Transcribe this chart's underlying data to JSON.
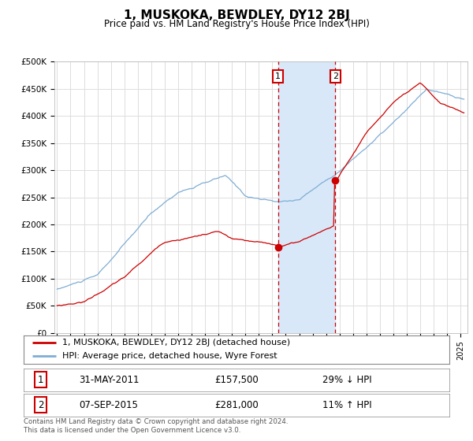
{
  "title": "1, MUSKOKA, BEWDLEY, DY12 2BJ",
  "subtitle": "Price paid vs. HM Land Registry's House Price Index (HPI)",
  "ylim": [
    0,
    500000
  ],
  "yticks": [
    0,
    50000,
    100000,
    150000,
    200000,
    250000,
    300000,
    350000,
    400000,
    450000,
    500000
  ],
  "ytick_labels": [
    "£0",
    "£50K",
    "£100K",
    "£150K",
    "£200K",
    "£250K",
    "£300K",
    "£350K",
    "£400K",
    "£450K",
    "£500K"
  ],
  "xlim_start": 1994.8,
  "xlim_end": 2025.5,
  "marker1_x": 2011.42,
  "marker2_x": 2015.68,
  "marker1_price": 157500,
  "marker2_price": 281000,
  "marker1_label": "31-MAY-2011",
  "marker2_label": "07-SEP-2015",
  "marker1_pct": "29% ↓ HPI",
  "marker2_pct": "11% ↑ HPI",
  "marker1_price_str": "£157,500",
  "marker2_price_str": "£281,000",
  "shade_color": "#d8e8f8",
  "red_line_color": "#cc0000",
  "blue_line_color": "#7eadd4",
  "dashed_line_color": "#cc0000",
  "legend_label1": "1, MUSKOKA, BEWDLEY, DY12 2BJ (detached house)",
  "legend_label2": "HPI: Average price, detached house, Wyre Forest",
  "footer": "Contains HM Land Registry data © Crown copyright and database right 2024.\nThis data is licensed under the Open Government Licence v3.0.",
  "bg_color": "#ffffff",
  "grid_color": "#dddddd"
}
